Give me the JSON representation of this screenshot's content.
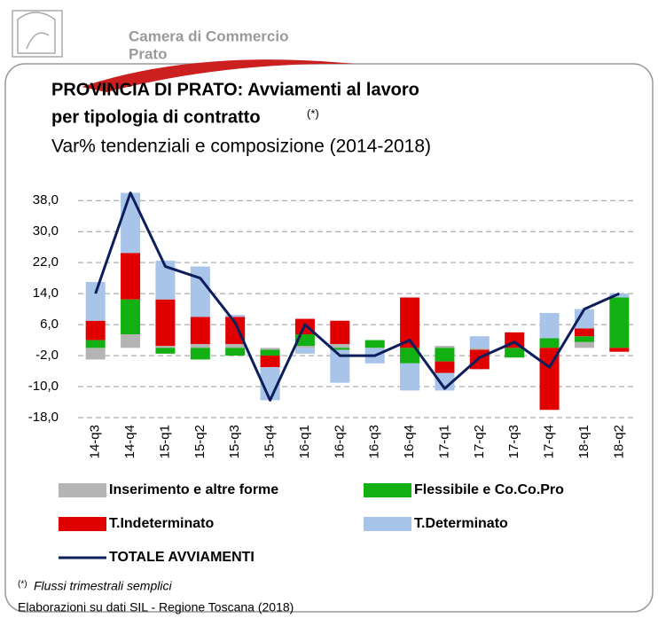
{
  "header": {
    "org_line1": "Camera di Commercio",
    "org_line2": "Prato"
  },
  "chart_data": {
    "type": "bar",
    "title_line1": "PROVINCIA DI PRATO: Avviamenti al lavoro",
    "title_line2": "per tipologia di contratto",
    "title_note": "(*)",
    "subtitle": "Var% tendenziali e composizione (2014-2018)",
    "categories": [
      "14-q3",
      "14-q4",
      "15-q1",
      "15-q2",
      "15-q3",
      "15-q4",
      "16-q1",
      "16-q2",
      "16-q3",
      "16-q4",
      "17-q1",
      "17-q2",
      "17-q3",
      "17-q4",
      "18-q1",
      "18-q2"
    ],
    "series": [
      {
        "name": "Inserimento e altre forme",
        "color": "#b4b4b4",
        "values": [
          -3,
          3.5,
          0.5,
          1,
          1,
          -0.5,
          0.5,
          1,
          0,
          0,
          0.5,
          -0.5,
          0,
          0,
          1.5,
          0
        ]
      },
      {
        "name": "Flessibile e Co.Co.Pro",
        "color": "#12b012",
        "values": [
          2,
          9,
          -1.5,
          -3,
          -2,
          -1.5,
          3,
          -0.5,
          2,
          -4,
          -3.5,
          0,
          -2.5,
          2.5,
          1.5,
          13
        ]
      },
      {
        "name": "T.Indeterminato",
        "color": "#e00000",
        "values": [
          5,
          12,
          12,
          7,
          7,
          -3,
          4,
          6,
          0,
          13,
          -3,
          -5,
          4,
          -16,
          2,
          -1
        ]
      },
      {
        "name": "T.Determinato",
        "color": "#a8c4e8",
        "values": [
          10,
          15.5,
          10,
          13,
          0.5,
          -8.5,
          -1.5,
          -8.5,
          -4,
          -7,
          -4.5,
          3,
          0,
          6.5,
          5,
          1
        ]
      },
      {
        "name": "TOTALE AVVIAMENTI",
        "color": "#0d1e5c",
        "type": "line",
        "values": [
          14,
          40,
          21,
          18,
          6.5,
          -13.5,
          6,
          -2,
          -2,
          2,
          -10.5,
          -2.5,
          1.5,
          -5,
          10,
          14
        ]
      }
    ],
    "ylim": [
      -18,
      40
    ],
    "yticks": [
      {
        "value": -18,
        "label": "-18,0"
      },
      {
        "value": -10,
        "label": "-10,0"
      },
      {
        "value": -2,
        "label": "-2,0"
      },
      {
        "value": 6,
        "label": "6,0"
      },
      {
        "value": 14,
        "label": "14,0"
      },
      {
        "value": 22,
        "label": "22,0"
      },
      {
        "value": 30,
        "label": "30,0"
      },
      {
        "value": 38,
        "label": "38,0"
      }
    ],
    "grid": true,
    "footnote_mark": "(*)",
    "footnote": "Flussi trimestrali semplici",
    "source": "Elaborazioni su dati SIL - Regione Toscana (2018)"
  }
}
